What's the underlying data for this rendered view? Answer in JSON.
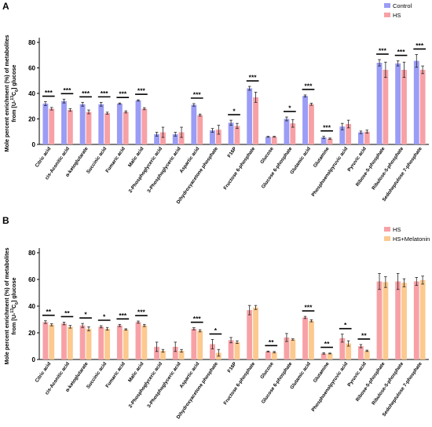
{
  "chart_data": [
    {
      "panel": "A",
      "type": "bar",
      "ylabel": "Mole percent enrichment (%) of metabolites",
      "ylabel_line2": "from [U-",
      "ylabel_sup": "13",
      "ylabel_c": "C",
      "ylabel_sub": "6",
      "ylabel_end": "] glucose",
      "ylim": [
        0,
        80
      ],
      "yticks": [
        "0",
        "20",
        "40",
        "60",
        "80"
      ],
      "legend_position": "top-right",
      "categories": [
        "Citric acid",
        "cis-Aconitic acid",
        "α-ketoglutarate",
        "Succinic acid",
        "Fumaric acid",
        "Malic acid",
        "2-Phosphoglyceric acid",
        "3-Phosphoglyceric acid",
        "Aspartic acid",
        "Dihydroxyacetone phosphate",
        "F16P",
        "Fructose 6-phosphate",
        "Glucose",
        "Glucose 6-phosphate",
        "Glutamic acid",
        "Glutamine",
        "Phosphoenolpyruvic acid",
        "Pyruvic acid",
        "Ribose-5-phosphate",
        "Ribulose-5-phosphate",
        "Sedoheptulose 7-phosphate"
      ],
      "series": [
        {
          "name": "Control",
          "color": "#9a9cf5",
          "values": [
            32,
            34,
            31.5,
            31.5,
            32,
            34.5,
            8,
            8,
            31,
            11,
            17,
            44,
            6,
            20,
            38,
            5.5,
            14,
            9.5,
            64,
            63.5,
            65.5
          ],
          "errors": [
            1.5,
            1.5,
            1.5,
            1.5,
            0.5,
            0.5,
            1.5,
            1.5,
            1,
            1.5,
            2,
            1.5,
            0.3,
            1.5,
            0.8,
            0.8,
            2.5,
            1,
            2.5,
            2,
            5
          ]
        },
        {
          "name": "HS",
          "color": "#f7a1a6",
          "values": [
            28,
            27,
            25.5,
            24.5,
            25.5,
            28,
            9.5,
            9.5,
            23,
            11.5,
            14.5,
            37,
            6,
            16.5,
            31.5,
            4.5,
            16,
            10,
            58.5,
            58.5,
            58.5
          ],
          "errors": [
            1,
            1,
            1.5,
            0.8,
            0.8,
            0.8,
            4,
            4,
            0.8,
            3.5,
            2,
            4,
            0.3,
            3,
            0.8,
            0.5,
            3,
            1.2,
            6,
            6,
            3
          ]
        }
      ],
      "significance": [
        {
          "index": 0,
          "label": "***"
        },
        {
          "index": 1,
          "label": "***"
        },
        {
          "index": 2,
          "label": "***"
        },
        {
          "index": 3,
          "label": "***"
        },
        {
          "index": 4,
          "label": "***"
        },
        {
          "index": 5,
          "label": "***"
        },
        {
          "index": 8,
          "label": "***"
        },
        {
          "index": 10,
          "label": "*"
        },
        {
          "index": 11,
          "label": "***"
        },
        {
          "index": 13,
          "label": "*"
        },
        {
          "index": 14,
          "label": "***"
        },
        {
          "index": 15,
          "label": "***"
        },
        {
          "index": 18,
          "label": "***"
        },
        {
          "index": 19,
          "label": "***"
        },
        {
          "index": 20,
          "label": "***"
        }
      ]
    },
    {
      "panel": "B",
      "type": "bar",
      "ylabel": "Mole percent enrichment (%) of metabolites",
      "ylabel_line2": "from [U-",
      "ylabel_sup": "13",
      "ylabel_c": "C",
      "ylabel_sub": "6",
      "ylabel_end": "] glucose",
      "ylim": [
        0,
        80
      ],
      "yticks": [
        "0",
        "20",
        "40",
        "60",
        "80"
      ],
      "legend_position": "top-right",
      "categories": [
        "Citric acid",
        "cis-Aconitic acid",
        "α-ketoglutarate",
        "Succinic acid",
        "Fumaric acid",
        "Malic acid",
        "2-Phosphoglyceric acid",
        "3-Phosphoglyceric acid",
        "Aspartic acid",
        "Dihydroxyacetone phosphate",
        "F16P",
        "Fructose 6-phosphate",
        "Glucose",
        "Glucose 6-phosphate",
        "Glutamic acid",
        "Glutamine",
        "Phosphoenolpyruvic acid",
        "Pyruvic acid",
        "Ribose-5-phosphate",
        "Ribulose-5-phosphate",
        "Sedoheptulose 7-phosphate"
      ],
      "series": [
        {
          "name": "HS",
          "color": "#f7a1a6",
          "values": [
            28,
            27,
            25.5,
            24.5,
            25.5,
            28,
            9.5,
            9.5,
            23,
            11.5,
            14.5,
            37,
            6,
            16.5,
            31.5,
            4.5,
            16,
            10,
            58.5,
            58.5,
            58.5
          ],
          "errors": [
            1,
            1,
            1.5,
            0.8,
            0.8,
            0.8,
            3.5,
            3.5,
            0.8,
            3.5,
            2,
            3.5,
            0.3,
            3,
            0.8,
            0.5,
            3,
            1.2,
            6,
            6,
            3
          ]
        },
        {
          "name": "HS+Melatonin",
          "color": "#fcc98f",
          "values": [
            26,
            24.5,
            23,
            23,
            22.5,
            25.5,
            6.5,
            6.5,
            21.5,
            5,
            13,
            39,
            5.5,
            15,
            29,
            4.5,
            12,
            6.5,
            58,
            57.5,
            59.5
          ],
          "errors": [
            0.8,
            1,
            1.5,
            1,
            0.5,
            0.8,
            1,
            1,
            0.8,
            2.5,
            1,
            1.5,
            0.5,
            0.5,
            0.8,
            0.3,
            2,
            0.5,
            4,
            3,
            3
          ]
        }
      ],
      "significance": [
        {
          "index": 0,
          "label": "**"
        },
        {
          "index": 1,
          "label": "**"
        },
        {
          "index": 2,
          "label": "*"
        },
        {
          "index": 3,
          "label": "*"
        },
        {
          "index": 4,
          "label": "***"
        },
        {
          "index": 5,
          "label": "***"
        },
        {
          "index": 8,
          "label": "***"
        },
        {
          "index": 9,
          "label": "*"
        },
        {
          "index": 12,
          "label": "**"
        },
        {
          "index": 14,
          "label": "***"
        },
        {
          "index": 15,
          "label": "**"
        },
        {
          "index": 16,
          "label": "*"
        },
        {
          "index": 17,
          "label": "**"
        }
      ]
    }
  ]
}
